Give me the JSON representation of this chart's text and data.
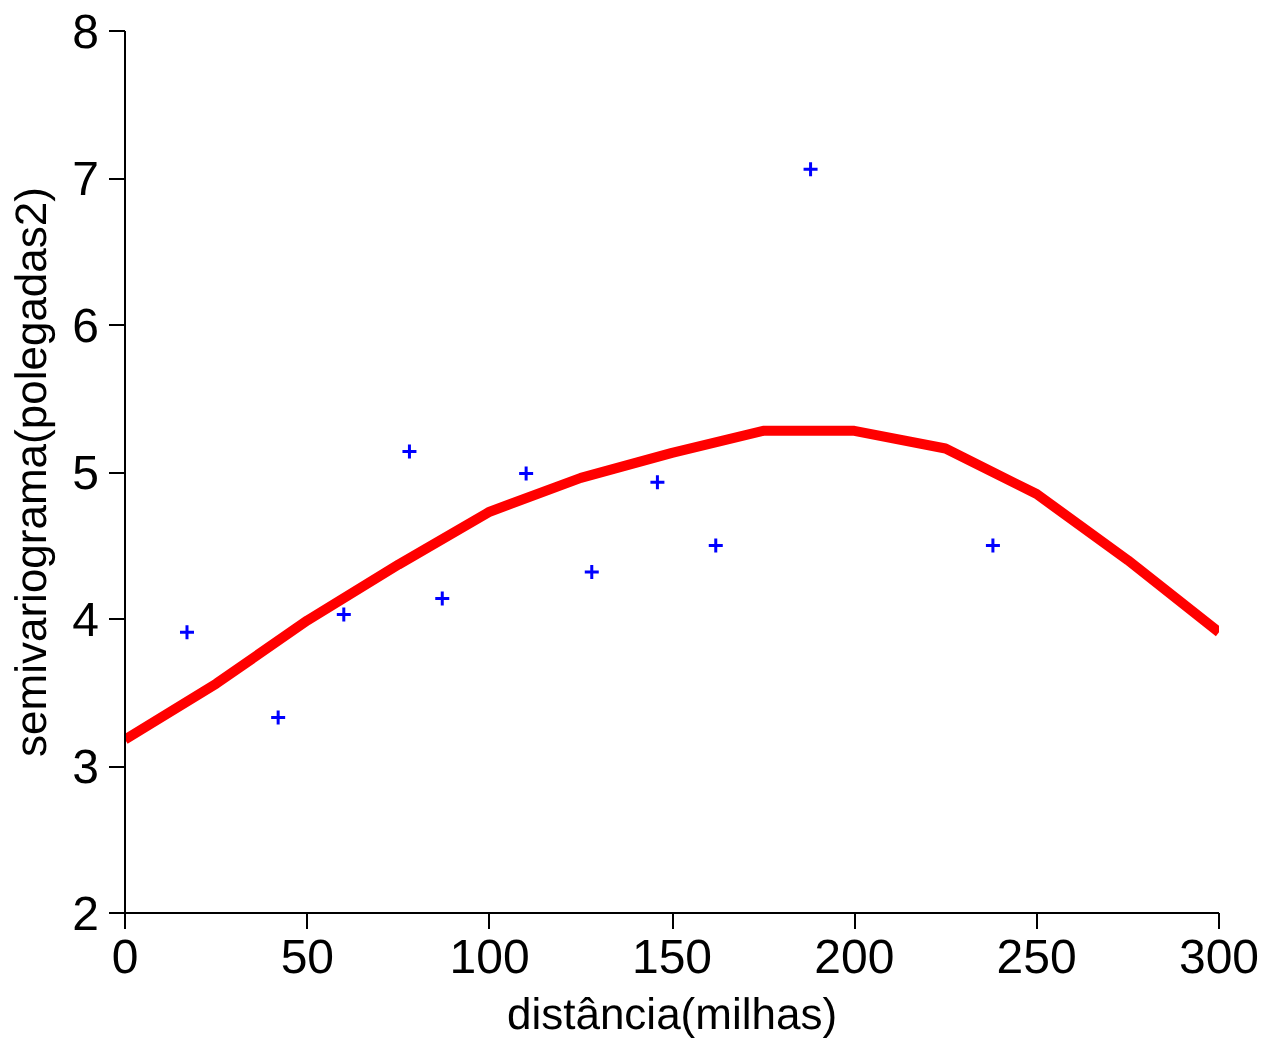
{
  "chart_data": {
    "type": "scatter",
    "xlabel": "distância(milhas)",
    "ylabel": "semivariograma(polegadas2)",
    "xlim": [
      0,
      300
    ],
    "ylim": [
      2,
      8
    ],
    "xticks": [
      0,
      50,
      100,
      150,
      200,
      250,
      300
    ],
    "yticks": [
      2,
      3,
      4,
      5,
      6,
      7,
      8
    ],
    "grid": false,
    "series": [
      {
        "color": "#0000ff",
        "marker": "cross",
        "x": [
          17,
          42,
          60,
          78,
          87,
          110,
          128,
          146,
          162,
          188,
          238
        ],
        "values": [
          3.91,
          3.33,
          4.03,
          5.14,
          4.14,
          4.99,
          4.32,
          4.93,
          4.5,
          7.06,
          4.5
        ]
      },
      {
        "type": "line",
        "color": "#ff0000",
        "x": [
          0,
          25,
          50,
          75,
          100,
          125,
          150,
          175,
          200,
          225,
          250,
          275,
          300
        ],
        "values": [
          3.18,
          3.56,
          3.99,
          4.37,
          4.73,
          4.96,
          5.13,
          5.28,
          5.28,
          5.16,
          4.85,
          4.4,
          3.91
        ]
      }
    ]
  }
}
